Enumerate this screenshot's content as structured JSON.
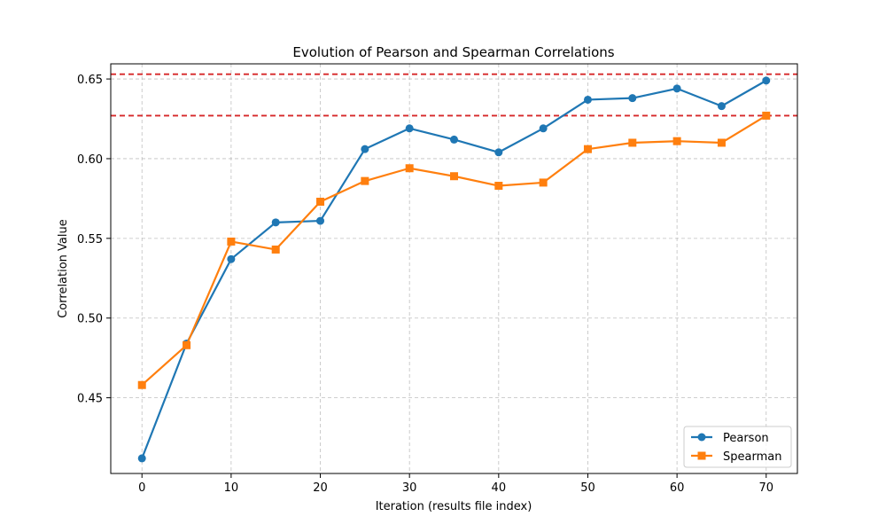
{
  "chart_data": {
    "type": "line",
    "title": "Evolution of Pearson and Spearman Correlations",
    "xlabel": "Iteration (results file index)",
    "ylabel": "Correlation Value",
    "x": [
      0,
      5,
      10,
      15,
      20,
      25,
      30,
      35,
      40,
      45,
      50,
      55,
      60,
      65,
      70
    ],
    "xlim": [
      -3.5,
      73.5
    ],
    "ylim": [
      0.4025,
      0.6595
    ],
    "xticks": [
      0,
      10,
      20,
      30,
      40,
      50,
      60,
      70
    ],
    "xtick_labels": [
      "0",
      "10",
      "20",
      "30",
      "40",
      "50",
      "60",
      "70"
    ],
    "yticks": [
      0.45,
      0.5,
      0.55,
      0.6,
      0.65
    ],
    "ytick_labels": [
      "0.45",
      "0.50",
      "0.55",
      "0.60",
      "0.65"
    ],
    "grid": true,
    "legend_position": "bottom-right",
    "series": [
      {
        "name": "Pearson",
        "color": "#1f77b4",
        "marker": "circle",
        "values": [
          0.412,
          0.484,
          0.537,
          0.56,
          0.561,
          0.606,
          0.619,
          0.612,
          0.604,
          0.619,
          0.637,
          0.638,
          0.644,
          0.633,
          0.649
        ]
      },
      {
        "name": "Spearman",
        "color": "#ff7f0e",
        "marker": "square",
        "values": [
          0.458,
          0.483,
          0.548,
          0.543,
          0.573,
          0.586,
          0.594,
          0.589,
          0.583,
          0.585,
          0.606,
          0.61,
          0.611,
          0.61,
          0.627
        ]
      }
    ],
    "reference_lines": [
      {
        "y": 0.653,
        "color": "#d62728",
        "style": "dashed"
      },
      {
        "y": 0.627,
        "color": "#d62728",
        "style": "dashed"
      }
    ]
  }
}
